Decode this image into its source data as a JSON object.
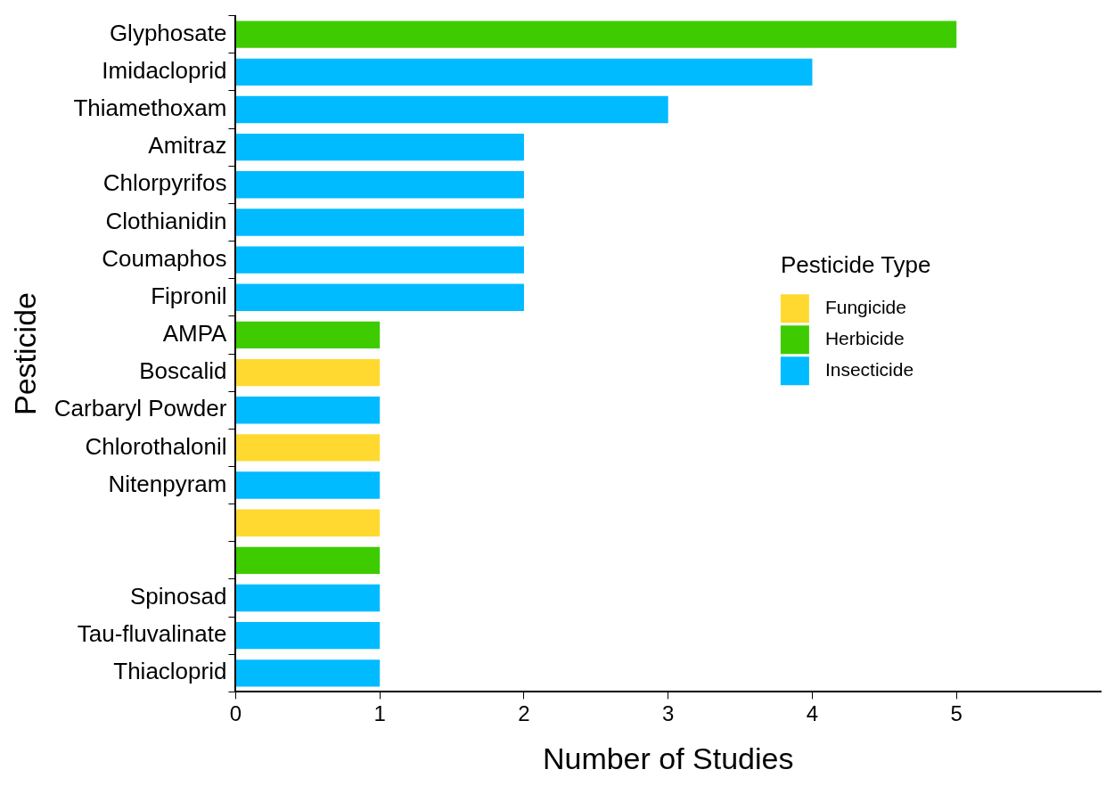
{
  "chart_data": {
    "type": "bar",
    "orientation": "horizontal",
    "stacked": true,
    "xlabel": "Number of Studies",
    "ylabel": "Pesticide",
    "legend_title": "Pesticide Type",
    "legend": "right",
    "grid": false,
    "categories": [
      "Glyphosate",
      "Imidacloprid",
      "Thiamethoxam",
      "Amitraz",
      "Chlorpyrifos",
      "Clothianidin",
      "Coumaphos",
      "Fipronil",
      "AMPA",
      "Boscalid",
      "Carbaryl Powder",
      "Chlorothalonil",
      "Nitenpyram",
      null,
      null,
      "Spinosad",
      "Tau-fluvalinate",
      "Thiacloprid"
    ],
    "xlim": [
      0,
      6
    ],
    "xticks": [
      0,
      1,
      2,
      3,
      4,
      5
    ],
    "series": [
      {
        "name": "Fungicide",
        "color": "#ffd92f",
        "values": [
          null,
          null,
          null,
          null,
          null,
          null,
          null,
          null,
          null,
          1,
          null,
          1,
          null,
          1,
          null,
          null,
          null,
          null
        ]
      },
      {
        "name": "Herbicide",
        "color": "#3ecc00",
        "values": [
          5,
          null,
          null,
          null,
          null,
          null,
          null,
          null,
          1,
          null,
          null,
          null,
          null,
          null,
          1,
          null,
          null,
          null
        ]
      },
      {
        "name": "Insecticide",
        "color": "#00bbff",
        "values": [
          null,
          4,
          3,
          2,
          2,
          2,
          2,
          2,
          null,
          null,
          1,
          null,
          1,
          null,
          null,
          1,
          1,
          1
        ]
      }
    ]
  }
}
